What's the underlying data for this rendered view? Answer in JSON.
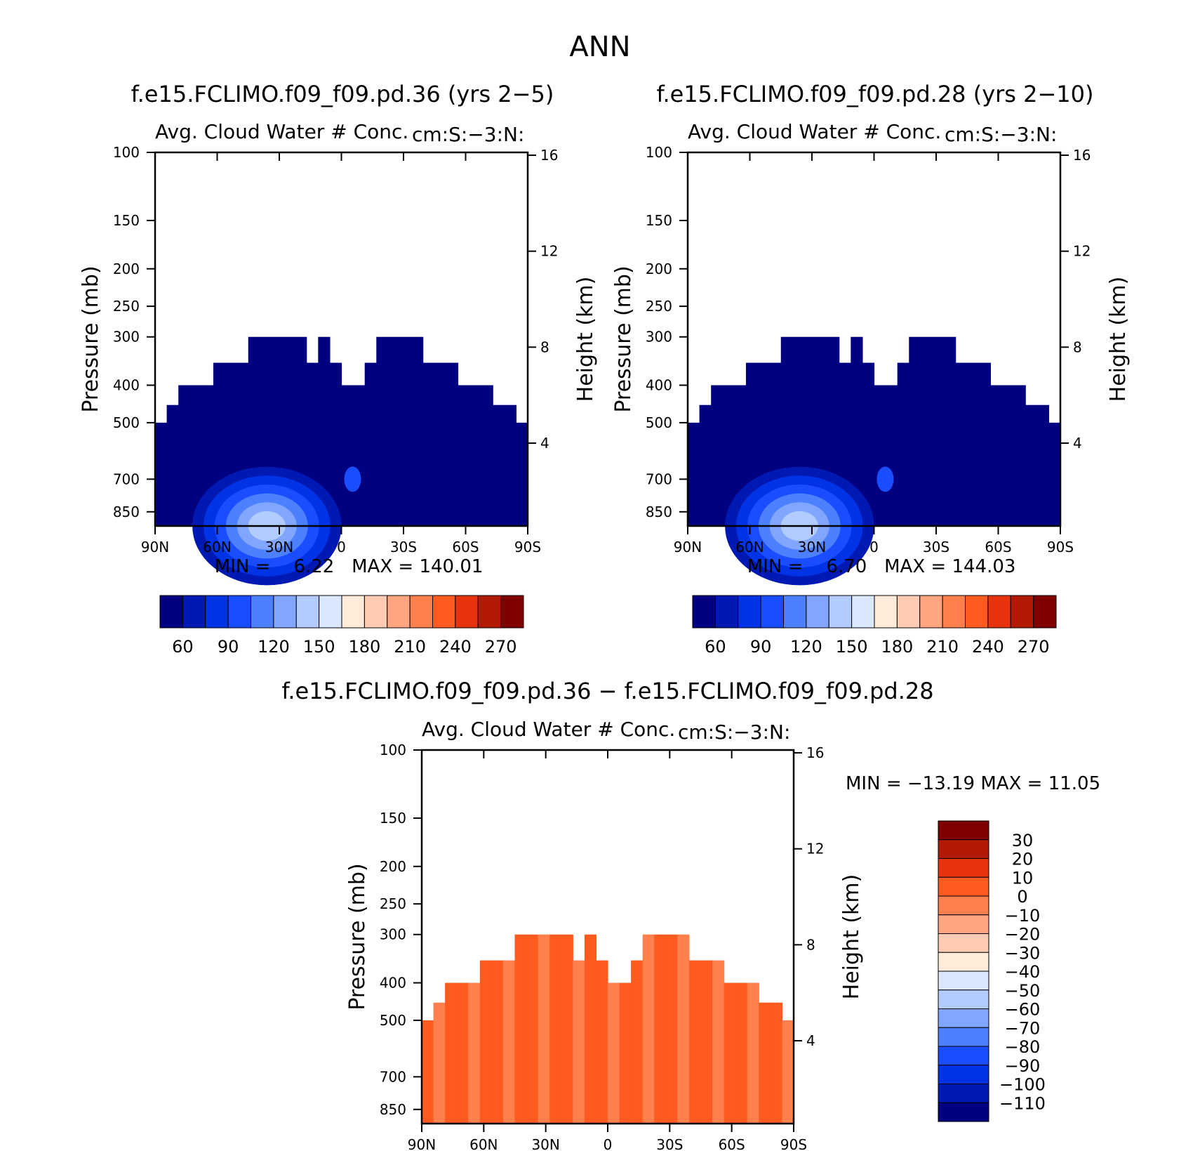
{
  "figure": {
    "title": "ANN"
  },
  "colors": {
    "abs_palette": [
      "#000080",
      "#0019b3",
      "#0033e6",
      "#1a4dff",
      "#4d80ff",
      "#80a6ff",
      "#b3ccff",
      "#d9e8ff",
      "#ffebd9",
      "#ffccb3",
      "#ffa680",
      "#ff804d",
      "#ff5a1f",
      "#e6330d",
      "#b31a06",
      "#800000"
    ],
    "diff_palette": [
      "#000080",
      "#0019b3",
      "#0033e6",
      "#1a4dff",
      "#4d80ff",
      "#80a6ff",
      "#b3ccff",
      "#d9e8ff",
      "#ffebd9",
      "#ffccb3",
      "#ffa680",
      "#ff804d",
      "#ff5a1f",
      "#e6330d",
      "#b31a06",
      "#800000"
    ]
  },
  "chart_data": [
    {
      "type": "heatmap",
      "panel": "case1",
      "title": "f.e15.FCLIMO.f09_f09.pd.36 (yrs 2−5)",
      "subtitle": "Avg. Cloud Water # Conc.",
      "units_label": "cm:S:−3:N:",
      "ylabel": "Pressure (mb)",
      "y2label": "Height (km)",
      "x_ticks": [
        "90N",
        "60N",
        "30N",
        "0",
        "30S",
        "60S",
        "90S"
      ],
      "y_ticks": [
        "100",
        "150",
        "200",
        "250",
        "300",
        "400",
        "500",
        "700",
        "850"
      ],
      "y2_ticks": [
        "16",
        "12",
        "8",
        "4"
      ],
      "stats": "MIN =    6.22   MAX = 140.01",
      "min": 6.22,
      "max": 140.01,
      "colorbar_labels": [
        "60",
        "90",
        "120",
        "150",
        "180",
        "210",
        "240",
        "270"
      ],
      "cloud_top_mb": [
        500,
        450,
        400,
        400,
        400,
        350,
        350,
        350,
        300,
        300,
        300,
        300,
        300,
        350,
        300,
        350,
        400,
        400,
        350,
        300,
        300,
        300,
        300,
        350,
        350,
        350,
        400,
        400,
        400,
        450,
        450,
        500
      ]
    },
    {
      "type": "heatmap",
      "panel": "case2",
      "title": "f.e15.FCLIMO.f09_f09.pd.28 (yrs 2−10)",
      "subtitle": "Avg. Cloud Water # Conc.",
      "units_label": "cm:S:−3:N:",
      "ylabel": "Pressure (mb)",
      "y2label": "Height (km)",
      "x_ticks": [
        "90N",
        "60N",
        "30N",
        "0",
        "30S",
        "60S",
        "90S"
      ],
      "y_ticks": [
        "100",
        "150",
        "200",
        "250",
        "300",
        "400",
        "500",
        "700",
        "850"
      ],
      "y2_ticks": [
        "16",
        "12",
        "8",
        "4"
      ],
      "stats": "MIN =    6.70   MAX = 144.03",
      "min": 6.7,
      "max": 144.03,
      "colorbar_labels": [
        "60",
        "90",
        "120",
        "150",
        "180",
        "210",
        "240",
        "270"
      ],
      "cloud_top_mb": [
        500,
        450,
        400,
        400,
        400,
        350,
        350,
        350,
        300,
        300,
        300,
        300,
        300,
        350,
        300,
        350,
        400,
        400,
        350,
        300,
        300,
        300,
        300,
        350,
        350,
        350,
        400,
        400,
        400,
        450,
        450,
        500
      ]
    },
    {
      "type": "heatmap",
      "panel": "difference",
      "title": "f.e15.FCLIMO.f09_f09.pd.36 − f.e15.FCLIMO.f09_f09.pd.28",
      "subtitle": "Avg. Cloud Water # Conc.",
      "units_label": "cm:S:−3:N:",
      "ylabel": "Pressure (mb)",
      "y2label": "Height (km)",
      "x_ticks": [
        "90N",
        "60N",
        "30N",
        "0",
        "30S",
        "60S",
        "90S"
      ],
      "y_ticks": [
        "100",
        "150",
        "200",
        "250",
        "300",
        "400",
        "500",
        "700",
        "850"
      ],
      "y2_ticks": [
        "16",
        "12",
        "8",
        "4"
      ],
      "stats": "MIN = −13.19   MAX =   11.05",
      "min": -13.19,
      "max": 11.05,
      "colorbar_labels": [
        "30",
        "20",
        "10",
        "0",
        "−10",
        "−20",
        "−30",
        "−40",
        "−50",
        "−60",
        "−70",
        "−80",
        "−90",
        "−100",
        "−110"
      ],
      "cloud_top_mb": [
        500,
        450,
        400,
        400,
        400,
        350,
        350,
        350,
        300,
        300,
        300,
        300,
        300,
        350,
        300,
        350,
        400,
        400,
        350,
        300,
        300,
        300,
        300,
        350,
        350,
        350,
        400,
        400,
        400,
        450,
        450,
        500
      ]
    }
  ]
}
